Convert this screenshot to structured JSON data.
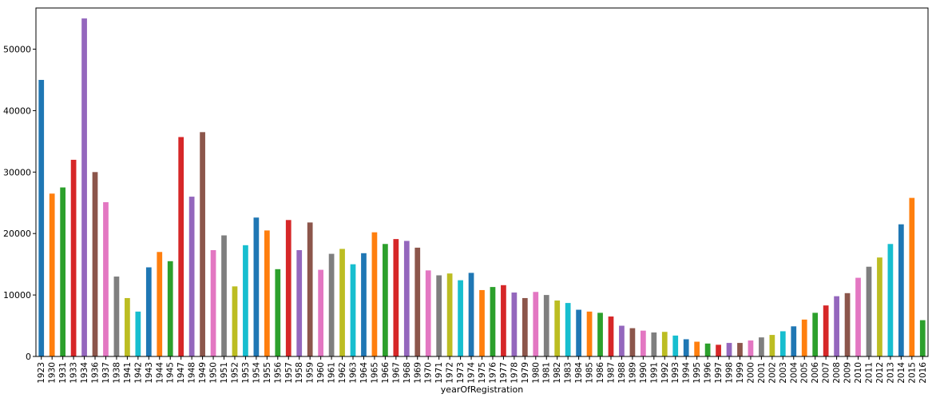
{
  "chart_data": {
    "type": "bar",
    "xlabel": "yearOfRegistration",
    "ylabel": "",
    "title": "",
    "ylim": [
      0,
      56700
    ],
    "yticks": [
      0,
      10000,
      20000,
      30000,
      40000,
      50000
    ],
    "grid": false,
    "legend": "none",
    "colors": [
      "#1f77b4",
      "#ff7f0e",
      "#2ca02c",
      "#d62728",
      "#9467bd",
      "#8c564b",
      "#e377c2",
      "#7f7f7f",
      "#bcbd22",
      "#17becf"
    ],
    "categories": [
      "1923",
      "1930",
      "1931",
      "1933",
      "1934",
      "1936",
      "1937",
      "1938",
      "1941",
      "1942",
      "1943",
      "1944",
      "1945",
      "1947",
      "1948",
      "1949",
      "1950",
      "1951",
      "1952",
      "1953",
      "1954",
      "1955",
      "1956",
      "1957",
      "1958",
      "1959",
      "1960",
      "1961",
      "1962",
      "1963",
      "1964",
      "1965",
      "1966",
      "1967",
      "1968",
      "1969",
      "1970",
      "1971",
      "1972",
      "1973",
      "1974",
      "1975",
      "1976",
      "1977",
      "1978",
      "1979",
      "1980",
      "1981",
      "1982",
      "1983",
      "1984",
      "1985",
      "1986",
      "1987",
      "1988",
      "1989",
      "1990",
      "1991",
      "1992",
      "1993",
      "1994",
      "1995",
      "1996",
      "1997",
      "1998",
      "1999",
      "2000",
      "2001",
      "2002",
      "2003",
      "2004",
      "2005",
      "2006",
      "2007",
      "2008",
      "2009",
      "2010",
      "2011",
      "2012",
      "2013",
      "2014",
      "2015",
      "2016"
    ],
    "values": [
      45000,
      26500,
      27500,
      32000,
      55000,
      30000,
      25100,
      13000,
      9500,
      7300,
      14500,
      17000,
      15500,
      35700,
      26000,
      36500,
      17300,
      19700,
      11400,
      18100,
      22600,
      20500,
      14200,
      22200,
      17300,
      21800,
      14100,
      16700,
      17500,
      15000,
      16800,
      20200,
      18300,
      19100,
      18800,
      17700,
      14000,
      13200,
      13500,
      12400,
      13600,
      10800,
      11300,
      11600,
      10400,
      9500,
      10500,
      10000,
      9100,
      8700,
      7600,
      7300,
      7100,
      6500,
      5000,
      4600,
      4200,
      3900,
      4000,
      3400,
      2800,
      2400,
      2100,
      1900,
      2200,
      2200,
      2600,
      3100,
      3500,
      4100,
      4900,
      6000,
      7100,
      8300,
      9800,
      10300,
      12800,
      14600,
      16100,
      18300,
      21500,
      25800,
      5900
    ]
  }
}
